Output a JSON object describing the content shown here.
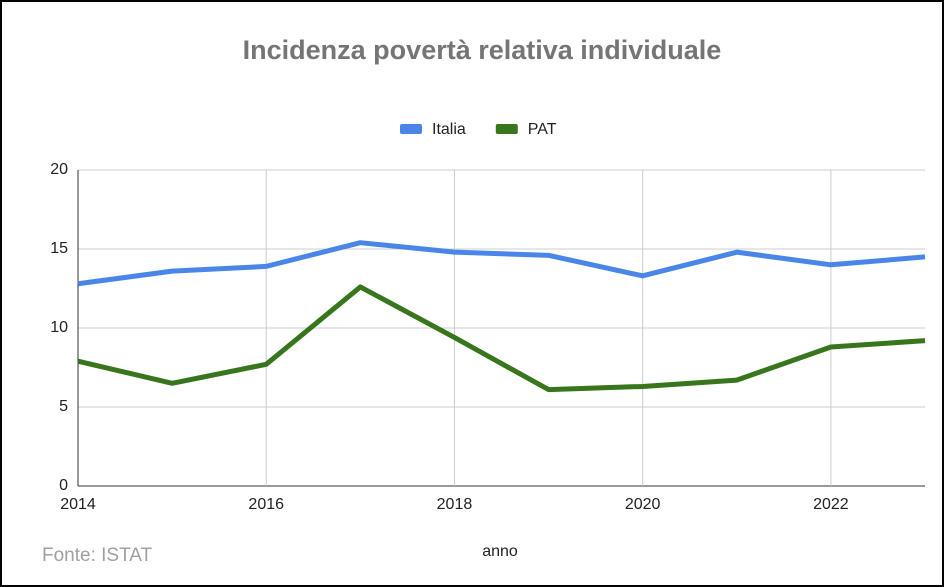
{
  "chart_data": {
    "type": "line",
    "title": "Incidenza povertà relativa individuale",
    "x_label": "anno",
    "source": "Fonte: ISTAT",
    "x": [
      2014,
      2015,
      2016,
      2017,
      2018,
      2019,
      2020,
      2021,
      2022,
      2023
    ],
    "series": [
      {
        "name": "Italia",
        "color": "#4a86e8",
        "values": [
          12.8,
          13.6,
          13.9,
          15.4,
          14.8,
          14.6,
          13.3,
          14.8,
          14.0,
          14.5
        ]
      },
      {
        "name": "PAT",
        "color": "#38761d",
        "values": [
          7.9,
          6.5,
          7.7,
          12.6,
          9.4,
          6.1,
          6.3,
          6.7,
          8.8,
          9.2
        ]
      }
    ],
    "xlim": [
      2014,
      2023
    ],
    "xticks": [
      2014,
      2016,
      2018,
      2020,
      2022
    ],
    "ylim": [
      0,
      20
    ],
    "yticks": [
      0,
      5,
      10,
      15,
      20
    ],
    "grid": true,
    "legend": "top"
  }
}
